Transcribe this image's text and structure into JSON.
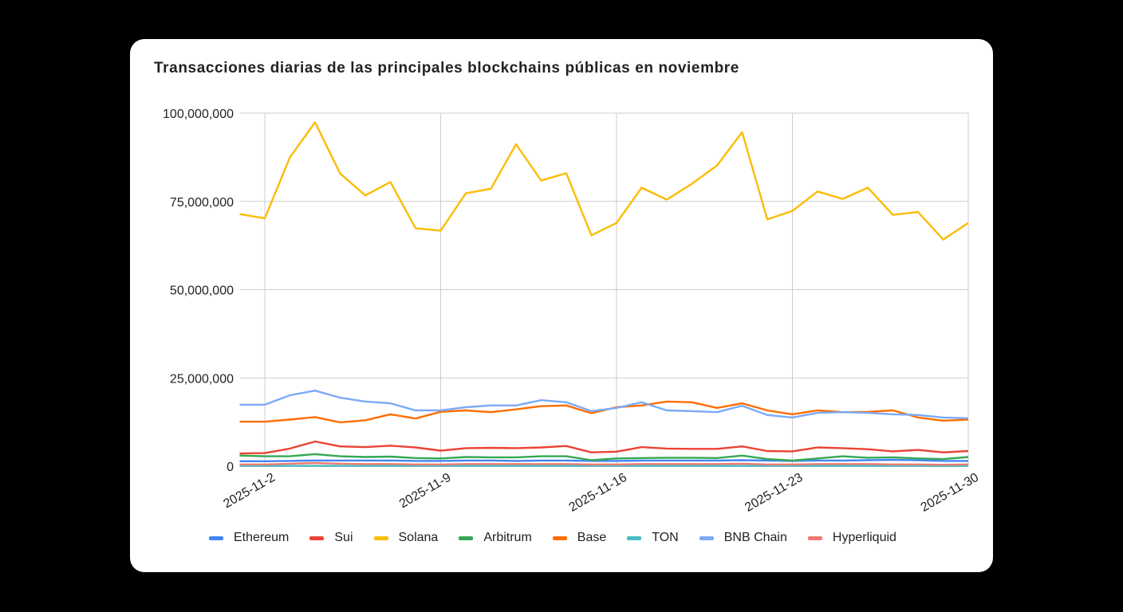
{
  "chart_data": {
    "type": "line",
    "title": "Transacciones diarias de las principales blockchains públicas en noviembre",
    "xlabel": "",
    "ylabel": "",
    "ylim": [
      0,
      100000000
    ],
    "y_ticks": [
      "0",
      "25,000,000",
      "50,000,000",
      "75,000,000",
      "100,000,000"
    ],
    "x_ticks": [
      "2025-11-2",
      "2025-11-9",
      "2025-11-16",
      "2025-11-23",
      "2025-11-30"
    ],
    "grid": true,
    "legend_position": "bottom",
    "x": [
      "2025-11-1",
      "2025-11-2",
      "2025-11-3",
      "2025-11-4",
      "2025-11-5",
      "2025-11-6",
      "2025-11-7",
      "2025-11-8",
      "2025-11-9",
      "2025-11-10",
      "2025-11-11",
      "2025-11-12",
      "2025-11-13",
      "2025-11-14",
      "2025-11-15",
      "2025-11-16",
      "2025-11-17",
      "2025-11-18",
      "2025-11-19",
      "2025-11-20",
      "2025-11-21",
      "2025-11-22",
      "2025-11-23",
      "2025-11-24",
      "2025-11-25",
      "2025-11-26",
      "2025-11-27",
      "2025-11-28",
      "2025-11-29",
      "2025-11-30"
    ],
    "series": [
      {
        "name": "Ethereum",
        "color": "#4285f4",
        "values": [
          1400000,
          1400000,
          1500000,
          1600000,
          1600000,
          1600000,
          1600000,
          1500000,
          1500000,
          1600000,
          1600000,
          1500000,
          1600000,
          1600000,
          1500000,
          1500000,
          1600000,
          1600000,
          1600000,
          1600000,
          1700000,
          1600000,
          1500000,
          1600000,
          1600000,
          1700000,
          1800000,
          1700000,
          1500000,
          1500000
        ]
      },
      {
        "name": "Sui",
        "color": "#ea4335",
        "values": [
          3600000,
          3700000,
          5000000,
          7000000,
          5600000,
          5400000,
          5800000,
          5300000,
          4400000,
          5100000,
          5200000,
          5100000,
          5300000,
          5700000,
          3900000,
          4100000,
          5400000,
          5000000,
          4900000,
          4900000,
          5600000,
          4300000,
          4200000,
          5300000,
          5100000,
          4800000,
          4200000,
          4600000,
          3900000,
          4300000
        ]
      },
      {
        "name": "Solana",
        "color": "#fbbc04",
        "values": [
          71400000,
          70200000,
          87500000,
          97400000,
          82900000,
          76700000,
          80500000,
          67400000,
          66700000,
          77300000,
          78600000,
          91200000,
          80900000,
          83000000,
          65400000,
          68900000,
          78900000,
          75500000,
          80000000,
          85200000,
          94600000,
          69900000,
          72300000,
          77800000,
          75700000,
          78900000,
          71200000,
          72000000,
          64200000,
          68900000
        ]
      },
      {
        "name": "Arbitrum",
        "color": "#34a853",
        "values": [
          3000000,
          2800000,
          2800000,
          3400000,
          2800000,
          2600000,
          2700000,
          2300000,
          2200000,
          2600000,
          2500000,
          2500000,
          2800000,
          2800000,
          1700000,
          2200000,
          2300000,
          2400000,
          2400000,
          2300000,
          3000000,
          2000000,
          1600000,
          2200000,
          2800000,
          2400000,
          2500000,
          2200000,
          2000000,
          2600000
        ]
      },
      {
        "name": "Base",
        "color": "#ff6d01",
        "values": [
          12600000,
          12600000,
          13200000,
          13900000,
          12400000,
          13000000,
          14700000,
          13500000,
          15400000,
          15800000,
          15300000,
          16100000,
          17000000,
          17200000,
          15000000,
          16700000,
          17200000,
          18300000,
          18100000,
          16500000,
          17800000,
          15800000,
          14700000,
          15800000,
          15300000,
          15400000,
          15800000,
          13800000,
          12900000,
          13200000
        ]
      },
      {
        "name": "TON",
        "color": "#46bdc6",
        "values": [
          100000,
          100000,
          100000,
          100000,
          100000,
          100000,
          100000,
          100000,
          100000,
          100000,
          100000,
          100000,
          100000,
          100000,
          100000,
          100000,
          100000,
          100000,
          100000,
          100000,
          100000,
          100000,
          100000,
          100000,
          100000,
          100000,
          100000,
          100000,
          100000,
          100000
        ]
      },
      {
        "name": "BNB Chain",
        "color": "#7baaf7",
        "values": [
          17400000,
          17400000,
          20100000,
          21400000,
          19400000,
          18300000,
          17800000,
          15800000,
          15800000,
          16700000,
          17200000,
          17200000,
          18700000,
          18100000,
          15600000,
          16500000,
          18100000,
          15800000,
          15600000,
          15300000,
          17100000,
          14500000,
          13800000,
          15100000,
          15300000,
          15100000,
          14700000,
          14500000,
          13800000,
          13600000
        ]
      },
      {
        "name": "Hyperliquid",
        "color": "#f07b72",
        "values": [
          500000,
          500000,
          700000,
          900000,
          700000,
          600000,
          600000,
          500000,
          500000,
          600000,
          600000,
          600000,
          600000,
          600000,
          500000,
          500000,
          600000,
          600000,
          600000,
          600000,
          700000,
          500000,
          500000,
          600000,
          600000,
          600000,
          500000,
          500000,
          400000,
          500000
        ]
      }
    ]
  }
}
